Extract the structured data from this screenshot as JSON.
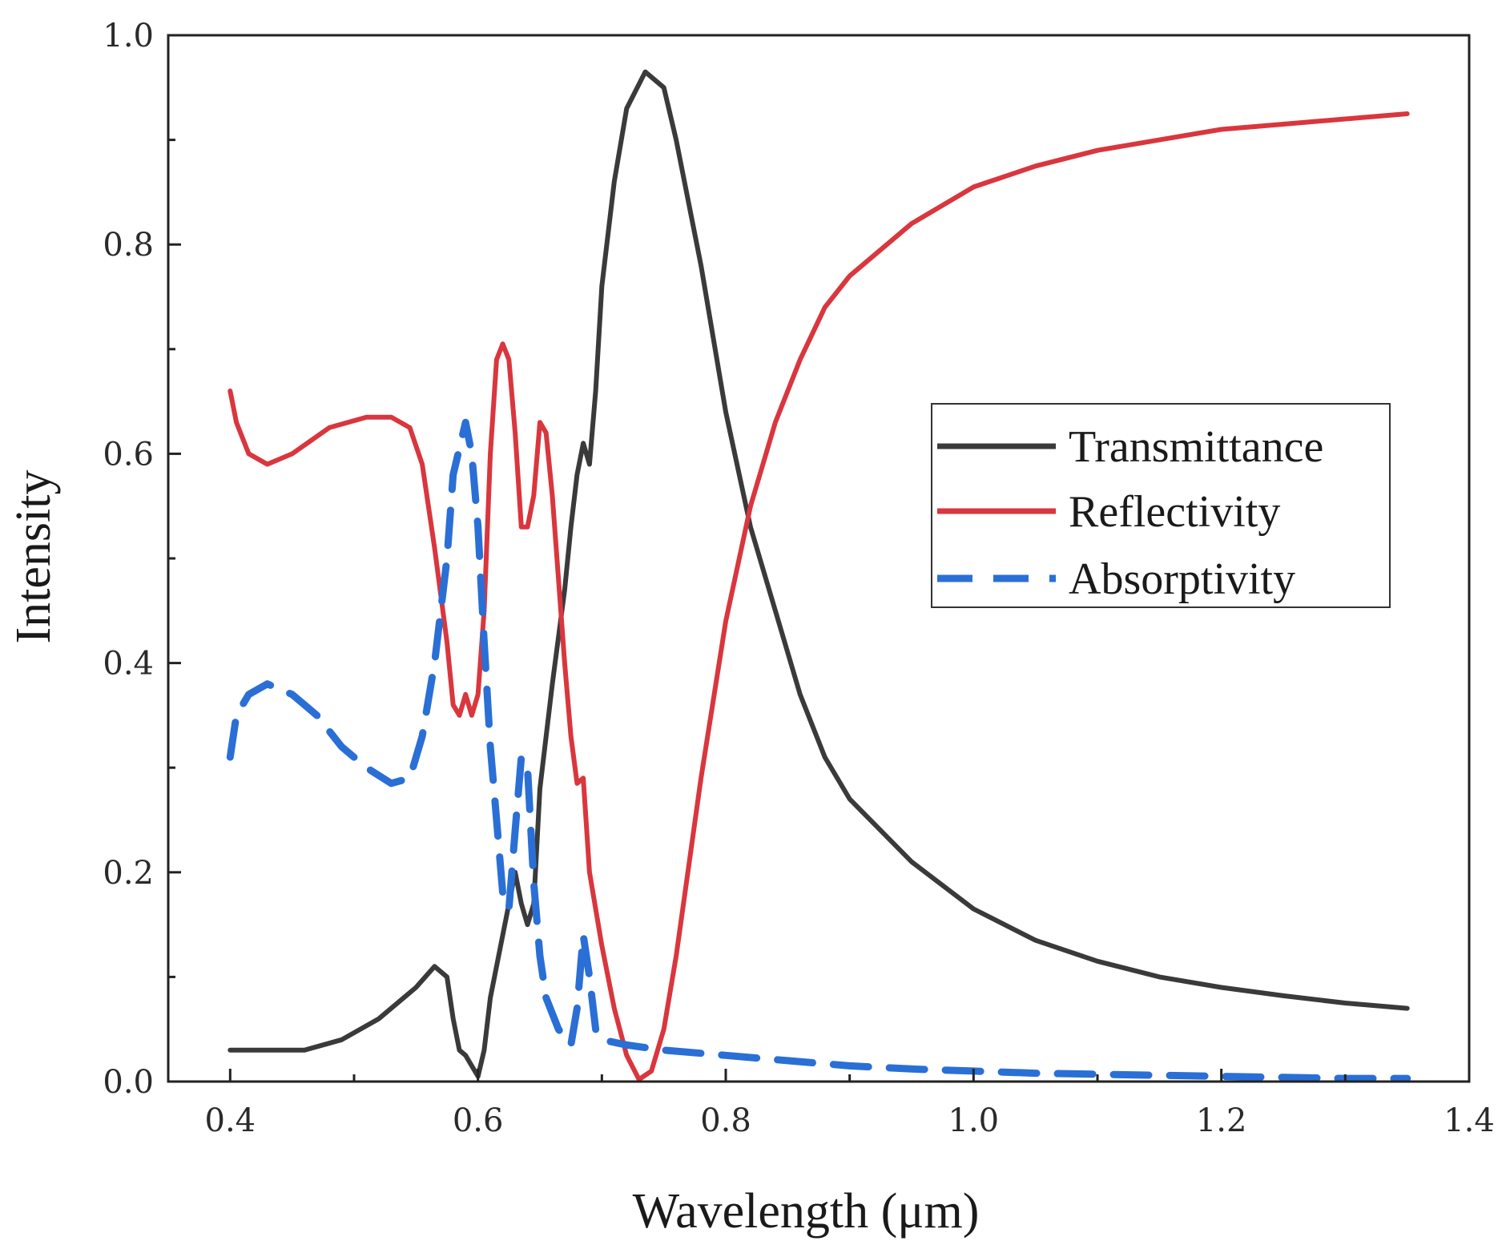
{
  "chart_data": {
    "type": "line",
    "title": "",
    "xlabel": "Wavelength (μm)",
    "ylabel": "Intensity",
    "xlim": [
      0.35,
      1.4
    ],
    "ylim": [
      0.0,
      1.0
    ],
    "grid": false,
    "legend_position": "center-right",
    "x_ticks": [
      {
        "value": 0.4,
        "label": "0.4"
      },
      {
        "value": 0.6,
        "label": "0.6"
      },
      {
        "value": 0.8,
        "label": "0.8"
      },
      {
        "value": 1.0,
        "label": "1.0"
      },
      {
        "value": 1.2,
        "label": "1.2"
      },
      {
        "value": 1.4,
        "label": "1.4"
      }
    ],
    "x_minor_ticks": [
      0.5,
      0.7,
      0.9,
      1.1,
      1.3
    ],
    "y_ticks": [
      {
        "value": 0.0,
        "label": "0.0"
      },
      {
        "value": 0.2,
        "label": "0.2"
      },
      {
        "value": 0.4,
        "label": "0.4"
      },
      {
        "value": 0.6,
        "label": "0.6"
      },
      {
        "value": 0.8,
        "label": "0.8"
      },
      {
        "value": 1.0,
        "label": "1.0"
      }
    ],
    "y_minor_ticks": [
      0.1,
      0.3,
      0.5,
      0.7,
      0.9
    ],
    "series": [
      {
        "name": "Transmittance",
        "color": "#3a3a3a",
        "dash": "solid",
        "points": [
          [
            0.4,
            0.03
          ],
          [
            0.43,
            0.03
          ],
          [
            0.46,
            0.03
          ],
          [
            0.49,
            0.04
          ],
          [
            0.52,
            0.06
          ],
          [
            0.55,
            0.09
          ],
          [
            0.565,
            0.11
          ],
          [
            0.575,
            0.1
          ],
          [
            0.58,
            0.06
          ],
          [
            0.585,
            0.03
          ],
          [
            0.59,
            0.025
          ],
          [
            0.595,
            0.015
          ],
          [
            0.6,
            0.005
          ],
          [
            0.605,
            0.03
          ],
          [
            0.61,
            0.08
          ],
          [
            0.62,
            0.14
          ],
          [
            0.63,
            0.2
          ],
          [
            0.635,
            0.17
          ],
          [
            0.64,
            0.15
          ],
          [
            0.645,
            0.17
          ],
          [
            0.65,
            0.28
          ],
          [
            0.66,
            0.38
          ],
          [
            0.67,
            0.47
          ],
          [
            0.675,
            0.53
          ],
          [
            0.68,
            0.58
          ],
          [
            0.685,
            0.61
          ],
          [
            0.69,
            0.59
          ],
          [
            0.695,
            0.66
          ],
          [
            0.7,
            0.76
          ],
          [
            0.71,
            0.86
          ],
          [
            0.72,
            0.93
          ],
          [
            0.735,
            0.965
          ],
          [
            0.75,
            0.95
          ],
          [
            0.76,
            0.9
          ],
          [
            0.78,
            0.78
          ],
          [
            0.8,
            0.64
          ],
          [
            0.82,
            0.53
          ],
          [
            0.84,
            0.45
          ],
          [
            0.86,
            0.37
          ],
          [
            0.88,
            0.31
          ],
          [
            0.9,
            0.27
          ],
          [
            0.95,
            0.21
          ],
          [
            1.0,
            0.165
          ],
          [
            1.05,
            0.135
          ],
          [
            1.1,
            0.115
          ],
          [
            1.15,
            0.1
          ],
          [
            1.2,
            0.09
          ],
          [
            1.25,
            0.082
          ],
          [
            1.3,
            0.075
          ],
          [
            1.35,
            0.07
          ]
        ]
      },
      {
        "name": "Reflectivity",
        "color": "#d9363e",
        "dash": "solid",
        "points": [
          [
            0.4,
            0.66
          ],
          [
            0.405,
            0.63
          ],
          [
            0.415,
            0.6
          ],
          [
            0.43,
            0.59
          ],
          [
            0.45,
            0.6
          ],
          [
            0.48,
            0.625
          ],
          [
            0.51,
            0.635
          ],
          [
            0.53,
            0.635
          ],
          [
            0.545,
            0.625
          ],
          [
            0.555,
            0.59
          ],
          [
            0.565,
            0.51
          ],
          [
            0.575,
            0.42
          ],
          [
            0.58,
            0.36
          ],
          [
            0.585,
            0.35
          ],
          [
            0.59,
            0.37
          ],
          [
            0.595,
            0.35
          ],
          [
            0.6,
            0.37
          ],
          [
            0.605,
            0.45
          ],
          [
            0.61,
            0.6
          ],
          [
            0.615,
            0.69
          ],
          [
            0.62,
            0.705
          ],
          [
            0.625,
            0.69
          ],
          [
            0.63,
            0.62
          ],
          [
            0.635,
            0.53
          ],
          [
            0.64,
            0.53
          ],
          [
            0.645,
            0.56
          ],
          [
            0.65,
            0.63
          ],
          [
            0.655,
            0.62
          ],
          [
            0.66,
            0.56
          ],
          [
            0.665,
            0.48
          ],
          [
            0.67,
            0.4
          ],
          [
            0.675,
            0.33
          ],
          [
            0.68,
            0.285
          ],
          [
            0.685,
            0.29
          ],
          [
            0.69,
            0.2
          ],
          [
            0.7,
            0.13
          ],
          [
            0.71,
            0.07
          ],
          [
            0.72,
            0.025
          ],
          [
            0.73,
            0.002
          ],
          [
            0.74,
            0.01
          ],
          [
            0.75,
            0.05
          ],
          [
            0.76,
            0.12
          ],
          [
            0.78,
            0.29
          ],
          [
            0.8,
            0.44
          ],
          [
            0.82,
            0.55
          ],
          [
            0.84,
            0.63
          ],
          [
            0.86,
            0.69
          ],
          [
            0.88,
            0.74
          ],
          [
            0.9,
            0.77
          ],
          [
            0.95,
            0.82
          ],
          [
            1.0,
            0.855
          ],
          [
            1.05,
            0.875
          ],
          [
            1.1,
            0.89
          ],
          [
            1.15,
            0.9
          ],
          [
            1.2,
            0.91
          ],
          [
            1.25,
            0.915
          ],
          [
            1.3,
            0.92
          ],
          [
            1.35,
            0.925
          ]
        ]
      },
      {
        "name": "Absorptivity",
        "color": "#2a6fd6",
        "dash": "dashed",
        "points": [
          [
            0.4,
            0.31
          ],
          [
            0.405,
            0.35
          ],
          [
            0.415,
            0.37
          ],
          [
            0.43,
            0.38
          ],
          [
            0.45,
            0.37
          ],
          [
            0.47,
            0.35
          ],
          [
            0.49,
            0.32
          ],
          [
            0.51,
            0.3
          ],
          [
            0.53,
            0.285
          ],
          [
            0.545,
            0.29
          ],
          [
            0.555,
            0.33
          ],
          [
            0.565,
            0.4
          ],
          [
            0.575,
            0.5
          ],
          [
            0.58,
            0.58
          ],
          [
            0.59,
            0.63
          ],
          [
            0.595,
            0.6
          ],
          [
            0.6,
            0.53
          ],
          [
            0.605,
            0.42
          ],
          [
            0.61,
            0.32
          ],
          [
            0.615,
            0.25
          ],
          [
            0.62,
            0.18
          ],
          [
            0.625,
            0.165
          ],
          [
            0.63,
            0.24
          ],
          [
            0.635,
            0.31
          ],
          [
            0.64,
            0.3
          ],
          [
            0.645,
            0.19
          ],
          [
            0.65,
            0.12
          ],
          [
            0.655,
            0.08
          ],
          [
            0.665,
            0.05
          ],
          [
            0.675,
            0.035
          ],
          [
            0.68,
            0.07
          ],
          [
            0.685,
            0.14
          ],
          [
            0.69,
            0.1
          ],
          [
            0.695,
            0.05
          ],
          [
            0.7,
            0.04
          ],
          [
            0.72,
            0.035
          ],
          [
            0.75,
            0.03
          ],
          [
            0.8,
            0.025
          ],
          [
            0.85,
            0.02
          ],
          [
            0.9,
            0.015
          ],
          [
            0.95,
            0.012
          ],
          [
            1.0,
            0.01
          ],
          [
            1.05,
            0.008
          ],
          [
            1.1,
            0.007
          ],
          [
            1.15,
            0.006
          ],
          [
            1.2,
            0.005
          ],
          [
            1.25,
            0.004
          ],
          [
            1.3,
            0.003
          ],
          [
            1.35,
            0.003
          ]
        ]
      }
    ]
  }
}
